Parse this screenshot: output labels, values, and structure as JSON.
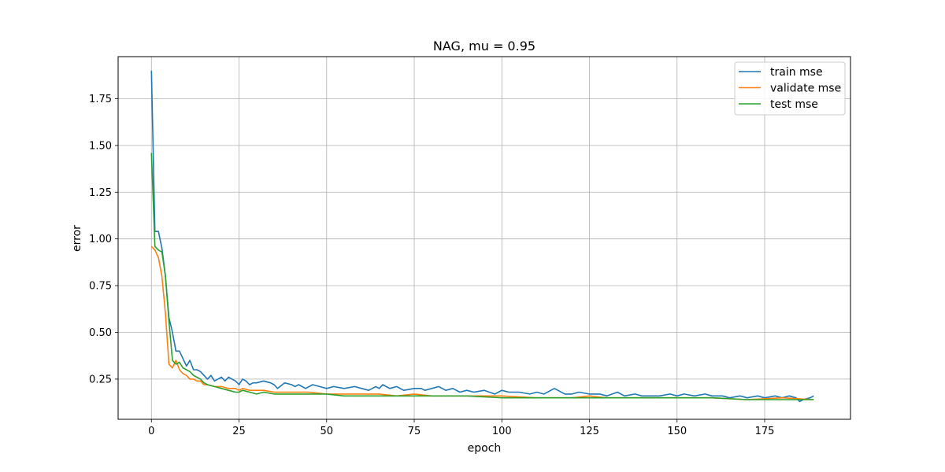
{
  "chart_data": {
    "type": "line",
    "title": "NAG, mu = 0.95",
    "xlabel": "epoch",
    "ylabel": "error",
    "xlim": [
      -9.5,
      199.5
    ],
    "ylim": [
      0.035,
      1.975
    ],
    "xticks": [
      0,
      25,
      50,
      75,
      100,
      125,
      150,
      175
    ],
    "xtick_labels": [
      "0",
      "25",
      "50",
      "75",
      "100",
      "125",
      "150",
      "175"
    ],
    "yticks": [
      0.25,
      0.5,
      0.75,
      1.0,
      1.25,
      1.5,
      1.75
    ],
    "ytick_labels": [
      "0.25",
      "0.50",
      "0.75",
      "1.00",
      "1.25",
      "1.50",
      "1.75"
    ],
    "grid": true,
    "legend_position": "top-right",
    "series": [
      {
        "name": "train mse",
        "color": "#1f77b4",
        "x": [
          0,
          1,
          2,
          3,
          4,
          5,
          6,
          7,
          8,
          9,
          10,
          11,
          12,
          13,
          14,
          15,
          16,
          17,
          18,
          19,
          20,
          21,
          22,
          23,
          24,
          25,
          26,
          27,
          28,
          29,
          30,
          32,
          34,
          35,
          36,
          38,
          40,
          41,
          42,
          44,
          46,
          48,
          50,
          52,
          55,
          58,
          60,
          62,
          64,
          65,
          66,
          68,
          70,
          72,
          75,
          77,
          78,
          80,
          82,
          84,
          86,
          88,
          90,
          92,
          95,
          98,
          100,
          102,
          105,
          108,
          110,
          112,
          115,
          118,
          120,
          122,
          125,
          128,
          130,
          133,
          135,
          138,
          140,
          143,
          145,
          148,
          150,
          152,
          155,
          158,
          160,
          163,
          165,
          168,
          170,
          173,
          175,
          178,
          180,
          182,
          184,
          185,
          186,
          188,
          189
        ],
        "values": [
          1.9,
          1.04,
          1.04,
          0.95,
          0.8,
          0.58,
          0.5,
          0.4,
          0.4,
          0.36,
          0.32,
          0.35,
          0.3,
          0.3,
          0.29,
          0.27,
          0.25,
          0.27,
          0.24,
          0.25,
          0.26,
          0.24,
          0.26,
          0.25,
          0.24,
          0.22,
          0.25,
          0.24,
          0.22,
          0.23,
          0.23,
          0.24,
          0.23,
          0.22,
          0.2,
          0.23,
          0.22,
          0.21,
          0.22,
          0.2,
          0.22,
          0.21,
          0.2,
          0.21,
          0.2,
          0.21,
          0.2,
          0.19,
          0.21,
          0.2,
          0.22,
          0.2,
          0.21,
          0.19,
          0.2,
          0.2,
          0.19,
          0.2,
          0.21,
          0.19,
          0.2,
          0.18,
          0.19,
          0.18,
          0.19,
          0.17,
          0.19,
          0.18,
          0.18,
          0.17,
          0.18,
          0.17,
          0.2,
          0.17,
          0.17,
          0.18,
          0.17,
          0.17,
          0.16,
          0.18,
          0.16,
          0.17,
          0.16,
          0.16,
          0.16,
          0.17,
          0.16,
          0.17,
          0.16,
          0.17,
          0.16,
          0.16,
          0.15,
          0.16,
          0.15,
          0.16,
          0.15,
          0.16,
          0.15,
          0.16,
          0.15,
          0.13,
          0.14,
          0.15,
          0.16
        ]
      },
      {
        "name": "validate mse",
        "color": "#ff7f0e",
        "x": [
          0,
          1,
          2,
          3,
          4,
          5,
          6,
          7,
          8,
          9,
          10,
          11,
          12,
          13,
          14,
          15,
          16,
          18,
          20,
          22,
          24,
          25,
          26,
          28,
          30,
          32,
          35,
          40,
          45,
          50,
          55,
          60,
          65,
          70,
          75,
          80,
          90,
          100,
          110,
          120,
          125,
          130,
          140,
          150,
          160,
          170,
          180,
          189
        ],
        "values": [
          0.96,
          0.94,
          0.9,
          0.8,
          0.6,
          0.33,
          0.31,
          0.35,
          0.3,
          0.28,
          0.27,
          0.25,
          0.25,
          0.24,
          0.24,
          0.22,
          0.22,
          0.21,
          0.21,
          0.2,
          0.2,
          0.19,
          0.2,
          0.19,
          0.19,
          0.19,
          0.18,
          0.18,
          0.18,
          0.17,
          0.17,
          0.17,
          0.17,
          0.16,
          0.17,
          0.16,
          0.16,
          0.16,
          0.15,
          0.15,
          0.16,
          0.15,
          0.15,
          0.15,
          0.15,
          0.14,
          0.15,
          0.14
        ]
      },
      {
        "name": "test mse",
        "color": "#2ca02c",
        "x": [
          0,
          1,
          2,
          3,
          4,
          5,
          6,
          7,
          8,
          9,
          10,
          11,
          12,
          13,
          14,
          15,
          16,
          18,
          20,
          22,
          24,
          25,
          26,
          28,
          30,
          32,
          35,
          40,
          45,
          50,
          55,
          60,
          65,
          70,
          75,
          80,
          90,
          100,
          110,
          120,
          125,
          130,
          140,
          150,
          160,
          170,
          180,
          189
        ],
        "values": [
          1.46,
          0.96,
          0.94,
          0.93,
          0.8,
          0.56,
          0.35,
          0.33,
          0.34,
          0.31,
          0.3,
          0.29,
          0.27,
          0.26,
          0.25,
          0.23,
          0.22,
          0.21,
          0.2,
          0.19,
          0.18,
          0.18,
          0.19,
          0.18,
          0.17,
          0.18,
          0.17,
          0.17,
          0.17,
          0.17,
          0.16,
          0.16,
          0.16,
          0.16,
          0.16,
          0.16,
          0.16,
          0.15,
          0.15,
          0.15,
          0.15,
          0.15,
          0.15,
          0.15,
          0.15,
          0.14,
          0.14,
          0.14
        ]
      }
    ]
  }
}
